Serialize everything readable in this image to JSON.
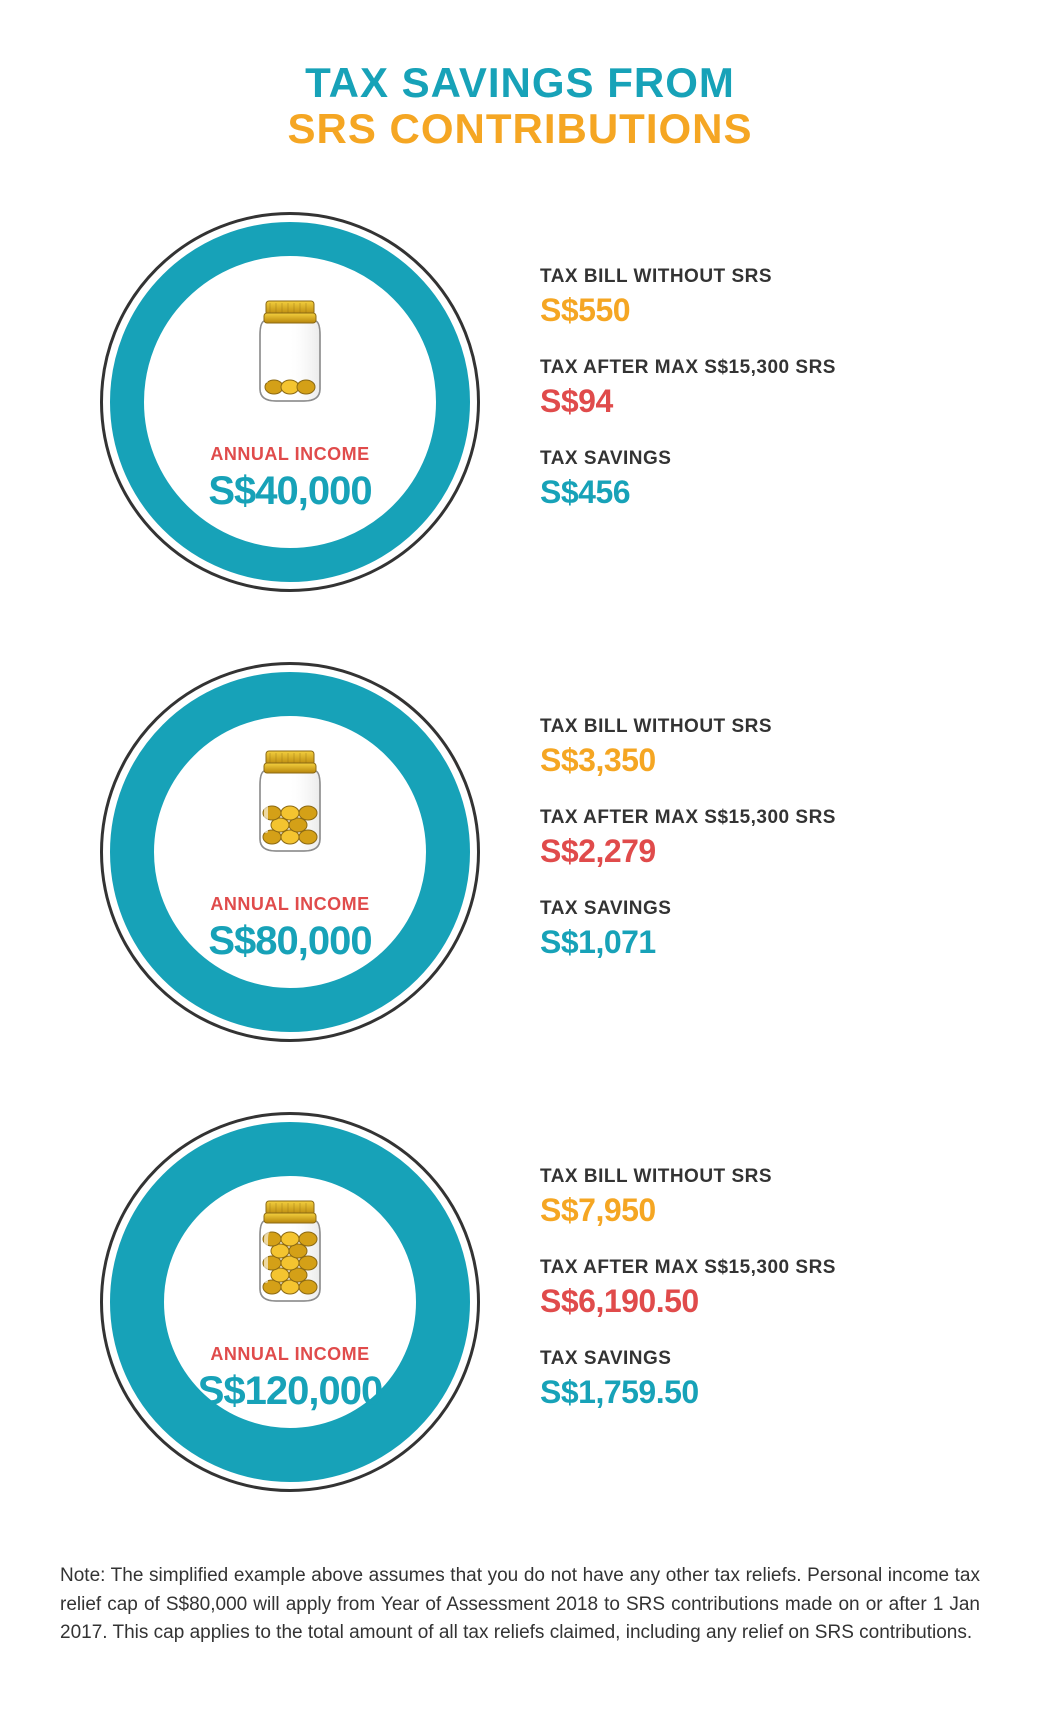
{
  "colors": {
    "teal": "#17a2b8",
    "orange": "#f5a623",
    "red": "#e04b4b",
    "dark": "#333333",
    "ring_border": "#333333"
  },
  "title": {
    "line1": "TAX SAVINGS FROM",
    "line1_color": "#17a2b8",
    "line2": "SRS CONTRIBUTIONS",
    "line2_color": "#f5a623"
  },
  "income_label": "ANNUAL INCOME",
  "stat_labels": {
    "without": "TAX BILL WITHOUT SRS",
    "after": "TAX AFTER MAX S$15,300 SRS",
    "savings": "TAX SAVINGS"
  },
  "tiers": [
    {
      "income": "S$40,000",
      "jar_fill": "low",
      "ring_thickness": 34,
      "without": "S$550",
      "after": "S$94",
      "savings": "S$456"
    },
    {
      "income": "S$80,000",
      "jar_fill": "mid",
      "ring_thickness": 44,
      "without": "S$3,350",
      "after": "S$2,279",
      "savings": "S$1,071"
    },
    {
      "income": "S$120,000",
      "jar_fill": "high",
      "ring_thickness": 54,
      "without": "S$7,950",
      "after": "S$6,190.50",
      "savings": "S$1,759.50"
    }
  ],
  "footnote": "Note: The simplified example above assumes that you do not have any other tax reliefs. Personal income tax relief cap of S$80,000 will apply from Year of Assessment 2018 to SRS contributions made on or after 1 Jan 2017. This cap applies to the total amount of all tax reliefs claimed, including any relief on SRS contributions."
}
